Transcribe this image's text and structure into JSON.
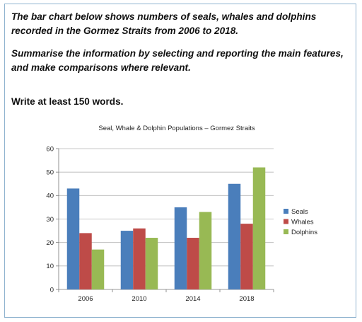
{
  "prompt": {
    "line1": "The bar chart below shows numbers of seals, whales and dolphins recorded in the Gormez Straits from 2006 to 2018.",
    "line2": "Summarise the information by selecting and reporting the main features, and make comparisons where relevant.",
    "instruction": "Write at least 150 words."
  },
  "chart_data": {
    "type": "bar",
    "title": "Seal, Whale & Dolphin Populations – Gormez Straits",
    "categories": [
      "2006",
      "2010",
      "2014",
      "2018"
    ],
    "series": [
      {
        "name": "Seals",
        "values": [
          43,
          25,
          35,
          45
        ],
        "color": "#4a7ebb"
      },
      {
        "name": "Whales",
        "values": [
          24,
          26,
          22,
          28
        ],
        "color": "#be4b48"
      },
      {
        "name": "Dolphins",
        "values": [
          17,
          22,
          33,
          52
        ],
        "color": "#98b954"
      }
    ],
    "ylim": [
      0,
      60
    ],
    "yticks": [
      0,
      10,
      20,
      30,
      40,
      50,
      60
    ],
    "grid": true,
    "legend": "right",
    "xlabel": "",
    "ylabel": ""
  }
}
